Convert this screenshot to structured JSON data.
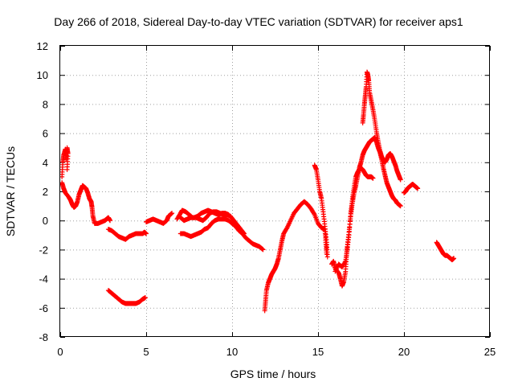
{
  "chart_data": {
    "type": "scatter",
    "title": "Day 266 of 2018, Sidereal Day-to-day VTEC variation (SDTVAR) for receiver aps1",
    "xlabel": "GPS time / hours",
    "ylabel": "SDTVAR / TECUs",
    "xlim": [
      0,
      25
    ],
    "ylim": [
      -8,
      12
    ],
    "xticks": [
      "0",
      "5",
      "10",
      "15",
      "20",
      "25"
    ],
    "yticks": [
      "-8",
      "-6",
      "-4",
      "-2",
      "0",
      "2",
      "4",
      "6",
      "8",
      "10",
      "12"
    ],
    "grid": true,
    "marker": "+",
    "color": "#ff0000",
    "series": [
      {
        "name": "SDTVAR",
        "segments": [
          [
            [
              0.1,
              3.0
            ],
            [
              0.15,
              4.0
            ],
            [
              0.2,
              4.5
            ],
            [
              0.3,
              4.9
            ],
            [
              0.35,
              4.2
            ],
            [
              0.4,
              5.0
            ],
            [
              0.45,
              4.6
            ],
            [
              0.4,
              3.5
            ]
          ],
          [
            [
              0.1,
              2.6
            ],
            [
              0.2,
              2.2
            ],
            [
              0.3,
              1.9
            ],
            [
              0.5,
              1.6
            ],
            [
              0.6,
              1.4
            ],
            [
              0.7,
              1.1
            ],
            [
              0.8,
              0.9
            ],
            [
              0.9,
              1.0
            ],
            [
              1.0,
              1.3
            ],
            [
              1.1,
              1.8
            ],
            [
              1.2,
              2.1
            ],
            [
              1.3,
              2.4
            ],
            [
              1.4,
              2.3
            ],
            [
              1.5,
              2.2
            ],
            [
              1.6,
              1.9
            ],
            [
              1.7,
              1.5
            ],
            [
              1.8,
              1.3
            ],
            [
              1.85,
              0.9
            ],
            [
              1.9,
              0.3
            ],
            [
              2.0,
              -0.2
            ],
            [
              2.2,
              -0.2
            ],
            [
              2.4,
              -0.1
            ],
            [
              2.6,
              0.0
            ],
            [
              2.7,
              0.1
            ],
            [
              2.8,
              0.2
            ],
            [
              2.9,
              0.0
            ]
          ],
          [
            [
              2.8,
              -0.6
            ],
            [
              3.0,
              -0.7
            ],
            [
              3.2,
              -0.9
            ],
            [
              3.4,
              -1.1
            ],
            [
              3.6,
              -1.2
            ],
            [
              3.8,
              -1.3
            ],
            [
              4.0,
              -1.1
            ],
            [
              4.2,
              -1.0
            ],
            [
              4.4,
              -0.9
            ],
            [
              4.6,
              -0.9
            ],
            [
              4.8,
              -0.9
            ],
            [
              4.9,
              -0.8
            ],
            [
              5.0,
              -0.9
            ]
          ],
          [
            [
              2.8,
              -4.8
            ],
            [
              3.0,
              -5.0
            ],
            [
              3.2,
              -5.2
            ],
            [
              3.4,
              -5.4
            ],
            [
              3.6,
              -5.6
            ],
            [
              3.8,
              -5.7
            ],
            [
              4.0,
              -5.7
            ],
            [
              4.2,
              -5.7
            ],
            [
              4.4,
              -5.7
            ],
            [
              4.6,
              -5.6
            ],
            [
              4.8,
              -5.4
            ],
            [
              4.95,
              -5.3
            ]
          ],
          [
            [
              5.0,
              -0.1
            ],
            [
              5.2,
              0.0
            ],
            [
              5.4,
              0.1
            ],
            [
              5.6,
              0.0
            ],
            [
              5.8,
              -0.1
            ],
            [
              6.0,
              -0.2
            ],
            [
              6.2,
              0.0
            ],
            [
              6.3,
              0.3
            ],
            [
              6.5,
              0.5
            ]
          ],
          [
            [
              7.0,
              -0.9
            ],
            [
              7.2,
              -0.9
            ],
            [
              7.4,
              -1.0
            ],
            [
              7.6,
              -1.1
            ],
            [
              7.8,
              -1.0
            ],
            [
              8.0,
              -0.9
            ],
            [
              8.2,
              -0.8
            ],
            [
              8.4,
              -0.6
            ],
            [
              8.6,
              -0.5
            ],
            [
              8.8,
              -0.2
            ],
            [
              9.0,
              0.0
            ],
            [
              9.2,
              0.1
            ],
            [
              9.4,
              0.1
            ],
            [
              9.6,
              0.1
            ],
            [
              9.8,
              0.0
            ],
            [
              10.0,
              -0.2
            ],
            [
              10.2,
              -0.4
            ],
            [
              10.4,
              -0.7
            ],
            [
              10.6,
              -0.9
            ],
            [
              10.8,
              -1.2
            ],
            [
              11.0,
              -1.4
            ],
            [
              11.2,
              -1.6
            ],
            [
              11.4,
              -1.7
            ],
            [
              11.6,
              -1.8
            ],
            [
              11.8,
              -2.0
            ]
          ],
          [
            [
              6.8,
              0.1
            ],
            [
              7.0,
              0.5
            ],
            [
              7.1,
              0.7
            ],
            [
              7.3,
              0.6
            ],
            [
              7.5,
              0.4
            ],
            [
              7.7,
              0.2
            ],
            [
              7.9,
              0.2
            ],
            [
              8.1,
              0.1
            ],
            [
              8.3,
              0.0
            ],
            [
              8.5,
              0.2
            ],
            [
              8.7,
              0.5
            ],
            [
              8.9,
              0.6
            ],
            [
              9.1,
              0.6
            ],
            [
              9.3,
              0.5
            ],
            [
              9.5,
              0.4
            ],
            [
              9.7,
              0.4
            ],
            [
              9.9,
              0.3
            ],
            [
              10.1,
              0.0
            ],
            [
              10.3,
              -0.3
            ],
            [
              10.5,
              -0.6
            ],
            [
              10.7,
              -0.9
            ]
          ],
          [
            [
              7.0,
              0.2
            ],
            [
              7.2,
              0.0
            ],
            [
              7.4,
              0.1
            ],
            [
              7.6,
              0.2
            ],
            [
              7.8,
              0.2
            ],
            [
              8.0,
              0.3
            ],
            [
              8.2,
              0.5
            ],
            [
              8.4,
              0.6
            ],
            [
              8.6,
              0.7
            ],
            [
              8.8,
              0.6
            ],
            [
              9.0,
              0.5
            ],
            [
              9.2,
              0.4
            ],
            [
              9.4,
              0.5
            ],
            [
              9.6,
              0.5
            ],
            [
              9.8,
              0.4
            ]
          ],
          [
            [
              11.9,
              -6.2
            ],
            [
              11.95,
              -5.5
            ],
            [
              12.0,
              -4.8
            ],
            [
              12.1,
              -4.3
            ],
            [
              12.2,
              -4.0
            ],
            [
              12.3,
              -3.7
            ],
            [
              12.4,
              -3.5
            ],
            [
              12.5,
              -3.3
            ],
            [
              12.6,
              -3.0
            ],
            [
              12.7,
              -2.6
            ],
            [
              12.8,
              -2.0
            ],
            [
              12.9,
              -1.4
            ],
            [
              13.0,
              -0.9
            ],
            [
              13.2,
              -0.5
            ],
            [
              13.4,
              0.0
            ],
            [
              13.6,
              0.5
            ],
            [
              13.8,
              0.8
            ],
            [
              14.0,
              1.1
            ],
            [
              14.2,
              1.3
            ],
            [
              14.4,
              1.1
            ],
            [
              14.6,
              0.8
            ],
            [
              14.8,
              0.4
            ],
            [
              15.0,
              -0.2
            ],
            [
              15.2,
              -0.5
            ],
            [
              15.4,
              -0.6
            ],
            [
              15.45,
              -1.5
            ],
            [
              15.5,
              -2.3
            ]
          ],
          [
            [
              14.8,
              3.8
            ],
            [
              14.9,
              3.5
            ],
            [
              15.0,
              2.8
            ],
            [
              15.1,
              2.0
            ],
            [
              15.2,
              1.5
            ],
            [
              15.3,
              0.6
            ],
            [
              15.4,
              -0.4
            ],
            [
              15.5,
              -1.5
            ],
            [
              15.55,
              -2.5
            ]
          ],
          [
            [
              15.8,
              -3.0
            ],
            [
              15.9,
              -2.8
            ],
            [
              16.0,
              -3.3
            ],
            [
              16.2,
              -3.6
            ],
            [
              16.3,
              -4.0
            ],
            [
              16.4,
              -4.5
            ],
            [
              16.5,
              -4.2
            ],
            [
              16.6,
              -3.5
            ],
            [
              16.65,
              -2.5
            ],
            [
              16.7,
              -1.8
            ],
            [
              16.8,
              -0.8
            ],
            [
              16.9,
              0.3
            ],
            [
              17.0,
              1.2
            ],
            [
              17.1,
              1.9
            ],
            [
              17.2,
              2.4
            ],
            [
              17.3,
              3.0
            ],
            [
              17.4,
              3.6
            ],
            [
              17.5,
              4.0
            ],
            [
              17.6,
              4.5
            ],
            [
              17.7,
              4.8
            ],
            [
              17.8,
              5.0
            ],
            [
              17.9,
              5.2
            ],
            [
              18.0,
              5.4
            ],
            [
              18.1,
              5.5
            ],
            [
              18.2,
              5.6
            ],
            [
              18.3,
              5.7
            ],
            [
              18.4,
              5.4
            ],
            [
              18.5,
              5.0
            ],
            [
              18.6,
              4.7
            ],
            [
              18.7,
              4.2
            ],
            [
              18.8,
              3.6
            ],
            [
              18.9,
              3.1
            ],
            [
              19.0,
              2.6
            ],
            [
              19.1,
              2.3
            ],
            [
              19.2,
              2.0
            ],
            [
              19.3,
              1.7
            ],
            [
              19.4,
              1.5
            ],
            [
              19.5,
              1.4
            ],
            [
              19.6,
              1.2
            ],
            [
              19.7,
              1.1
            ],
            [
              19.8,
              1.0
            ]
          ],
          [
            [
              16.0,
              -3.5
            ],
            [
              16.2,
              -3.0
            ],
            [
              16.4,
              -3.2
            ],
            [
              16.6,
              -2.8
            ],
            [
              16.7,
              -2.0
            ],
            [
              16.8,
              -1.0
            ],
            [
              16.9,
              0.5
            ],
            [
              17.0,
              1.5
            ],
            [
              17.1,
              2.3
            ],
            [
              17.2,
              3.0
            ],
            [
              17.3,
              3.3
            ],
            [
              17.4,
              3.5
            ],
            [
              17.5,
              3.6
            ],
            [
              17.6,
              3.5
            ],
            [
              17.7,
              3.3
            ],
            [
              17.8,
              3.1
            ],
            [
              17.9,
              3.0
            ],
            [
              18.0,
              3.0
            ],
            [
              18.1,
              3.0
            ],
            [
              18.2,
              2.9
            ]
          ],
          [
            [
              17.6,
              6.7
            ],
            [
              17.65,
              7.3
            ],
            [
              17.7,
              8.0
            ],
            [
              17.75,
              8.6
            ],
            [
              17.8,
              9.2
            ],
            [
              17.85,
              10.2
            ],
            [
              17.9,
              10.0
            ],
            [
              17.95,
              9.6
            ],
            [
              18.0,
              8.8
            ],
            [
              18.1,
              8.2
            ],
            [
              18.2,
              7.6
            ],
            [
              18.3,
              6.9
            ],
            [
              18.4,
              6.1
            ],
            [
              18.5,
              5.4
            ],
            [
              18.6,
              4.8
            ],
            [
              18.7,
              4.4
            ],
            [
              18.8,
              4.1
            ],
            [
              18.9,
              4.0
            ],
            [
              19.0,
              4.2
            ],
            [
              19.1,
              4.5
            ],
            [
              19.2,
              4.6
            ],
            [
              19.3,
              4.4
            ],
            [
              19.4,
              4.1
            ],
            [
              19.5,
              3.8
            ],
            [
              19.6,
              3.4
            ],
            [
              19.7,
              3.1
            ],
            [
              19.8,
              2.8
            ]
          ],
          [
            [
              20.0,
              1.9
            ],
            [
              20.1,
              2.0
            ],
            [
              20.2,
              2.2
            ],
            [
              20.3,
              2.3
            ],
            [
              20.4,
              2.4
            ],
            [
              20.5,
              2.5
            ],
            [
              20.6,
              2.4
            ],
            [
              20.7,
              2.3
            ],
            [
              20.8,
              2.2
            ]
          ],
          [
            [
              21.9,
              -1.5
            ],
            [
              22.0,
              -1.7
            ],
            [
              22.1,
              -1.9
            ],
            [
              22.2,
              -2.1
            ],
            [
              22.3,
              -2.3
            ],
            [
              22.4,
              -2.4
            ],
            [
              22.5,
              -2.4
            ],
            [
              22.6,
              -2.5
            ],
            [
              22.7,
              -2.6
            ],
            [
              22.8,
              -2.7
            ],
            [
              22.9,
              -2.6
            ]
          ]
        ]
      }
    ]
  }
}
